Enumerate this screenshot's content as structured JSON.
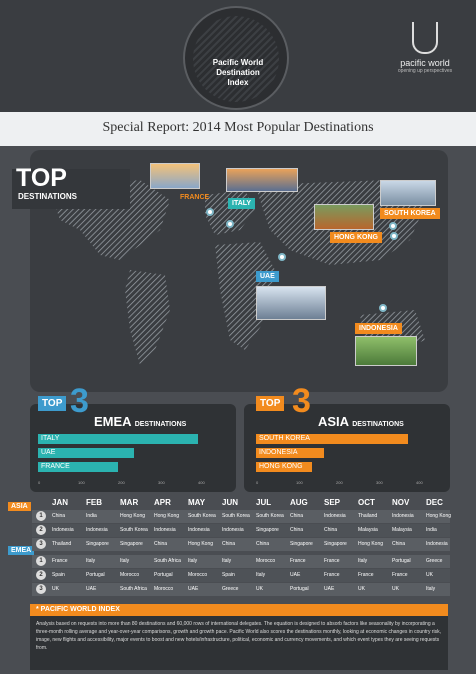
{
  "header": {
    "badge_title_1": "Pacific World",
    "badge_title_2": "Destination",
    "badge_title_3": "Index",
    "brand_name": "pacific world",
    "brand_tag": "opening up perspectives",
    "subtitle": "Special Report: 2014 Most Popular Destinations"
  },
  "map": {
    "top_big": "TOP",
    "top_small": "DESTINATIONS",
    "destinations": {
      "france": "FRANCE",
      "italy": "ITALY",
      "south_korea": "SOUTH KOREA",
      "hong_kong": "HONG KONG",
      "uae": "UAE",
      "indonesia": "INDONESIA"
    }
  },
  "chart_data": [
    {
      "type": "bar",
      "orientation": "horizontal",
      "title": "TOP 3 EMEA DESTINATIONS",
      "categories": [
        "ITALY",
        "UAE",
        "FRANCE"
      ],
      "values": [
        420,
        240,
        200
      ],
      "xlim": [
        0,
        400
      ],
      "ticks": [
        "0",
        "100",
        "200",
        "300",
        "400"
      ],
      "color": "#2bb3b0"
    },
    {
      "type": "bar",
      "orientation": "horizontal",
      "title": "TOP 3 ASIA DESTINATIONS",
      "categories": [
        "SOUTH KOREA",
        "INDONESIA",
        "HONG KONG"
      ],
      "values": [
        380,
        170,
        140
      ],
      "xlim": [
        0,
        400
      ],
      "ticks": [
        "0",
        "100",
        "200",
        "300",
        "400"
      ],
      "color": "#f28b1e"
    }
  ],
  "panels": {
    "emea": {
      "top": "TOP",
      "three": "3",
      "region": "EMEA",
      "suffix": "DESTINATIONS"
    },
    "asia": {
      "top": "TOP",
      "three": "3",
      "region": "ASIA",
      "suffix": "DESTINATIONS"
    }
  },
  "table": {
    "months": [
      "JAN",
      "FEB",
      "MAR",
      "APR",
      "MAY",
      "JUN",
      "JUL",
      "AUG",
      "SEP",
      "OCT",
      "NOV",
      "DEC"
    ],
    "asia_label": "ASIA",
    "emea_label": "EMEA",
    "asia_rows": [
      [
        "China",
        "India",
        "Hong Kong",
        "Hong Kong",
        "South Korea",
        "South Korea",
        "South Korea",
        "China",
        "Indonesia",
        "Thailand",
        "Indonesia",
        "Hong Kong"
      ],
      [
        "Indonesia",
        "Indonesia",
        "South Korea",
        "Indonesia",
        "Indonesia",
        "Indonesia",
        "Singapore",
        "China",
        "China",
        "Malaysia",
        "Malaysia",
        "India"
      ],
      [
        "Thailand",
        "Singapore",
        "Singapore",
        "China",
        "Hong Kong",
        "China",
        "China",
        "Singapore",
        "Singapore",
        "Hong Kong",
        "China",
        "Indonesia"
      ]
    ],
    "emea_rows": [
      [
        "France",
        "Italy",
        "Italy",
        "South Africa",
        "Italy",
        "Italy",
        "Morocco",
        "France",
        "France",
        "Italy",
        "Portugal",
        "Greece"
      ],
      [
        "Spain",
        "Portugal",
        "Morocco",
        "Portugal",
        "Morocco",
        "Spain",
        "Italy",
        "UAE",
        "France",
        "France",
        "France",
        "UK"
      ],
      [
        "UK",
        "UAE",
        "South Africa",
        "Morocco",
        "UAE",
        "Greece",
        "UK",
        "Portugal",
        "UAE",
        "UK",
        "UK",
        "Italy"
      ]
    ]
  },
  "footer": {
    "title": "* PACIFIC WORLD INDEX",
    "text": "Analysis based on requests into more than 80 destinations and 60,000 rows of international delegates. The equation is designed to absorb factors like seasonality by incorporating a three-month rolling average and year-over-year comparisons, growth and growth pace. Pacific World also scores the destinations monthly, looking at economic changes in country risk, image, new flights and accessibility, major events to boost and new hotels/infrastructure, political, economic and currency movements, and which event types they are seeing requests from."
  }
}
